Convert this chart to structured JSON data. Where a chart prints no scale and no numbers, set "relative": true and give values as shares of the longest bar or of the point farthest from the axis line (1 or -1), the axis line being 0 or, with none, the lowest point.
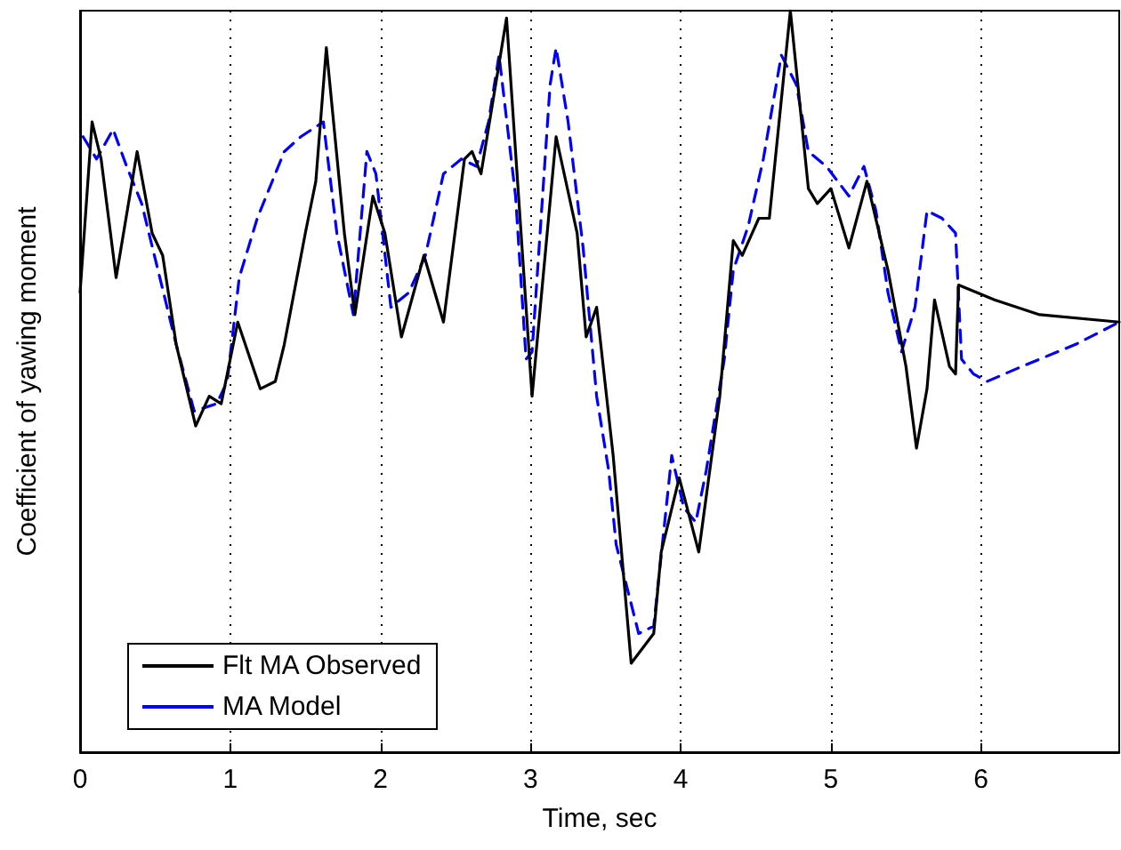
{
  "chart_data": {
    "type": "line",
    "xlabel": "Time, sec",
    "ylabel": "Coefficient of yawing moment",
    "relative": true,
    "xlim": [
      0,
      6.92
    ],
    "xticks": [
      0,
      1,
      2,
      3,
      4,
      5,
      6
    ],
    "grid": "x",
    "legend": "bottom left",
    "marker": "none",
    "series": [
      {
        "name": "Flt MA Observed",
        "color": "#000000",
        "line_style": "solid",
        "x": [
          0,
          0.08,
          0.14,
          0.24,
          0.38,
          0.48,
          0.55,
          0.64,
          0.77,
          0.86,
          0.94,
          1.05,
          1.2,
          1.3,
          1.36,
          1.5,
          1.57,
          1.64,
          1.76,
          1.83,
          1.95,
          2.03,
          2.14,
          2.29,
          2.42,
          2.56,
          2.61,
          2.67,
          2.84,
          3.01,
          3.17,
          3.31,
          3.37,
          3.44,
          3.55,
          3.67,
          3.82,
          3.87,
          3.99,
          4.12,
          4.26,
          4.35,
          4.41,
          4.52,
          4.59,
          4.73,
          4.85,
          4.91,
          5.0,
          5.12,
          5.24,
          5.38,
          5.5,
          5.57,
          5.64,
          5.69,
          5.79,
          5.83,
          5.85,
          6.09,
          6.39,
          6.92
        ],
        "values": [
          0.62,
          0.85,
          0.8,
          0.64,
          0.81,
          0.7,
          0.67,
          0.55,
          0.44,
          0.48,
          0.47,
          0.58,
          0.49,
          0.5,
          0.55,
          0.7,
          0.77,
          0.95,
          0.7,
          0.59,
          0.75,
          0.7,
          0.56,
          0.67,
          0.58,
          0.8,
          0.81,
          0.78,
          0.99,
          0.48,
          0.83,
          0.7,
          0.56,
          0.6,
          0.4,
          0.12,
          0.16,
          0.27,
          0.37,
          0.27,
          0.48,
          0.69,
          0.67,
          0.72,
          0.72,
          1.0,
          0.76,
          0.74,
          0.76,
          0.68,
          0.77,
          0.65,
          0.52,
          0.41,
          0.49,
          0.61,
          0.52,
          0.51,
          0.63,
          0.61,
          0.59,
          0.58
        ]
      },
      {
        "name": "MA Model",
        "color": "#0000ff",
        "line_style": "dashed",
        "x": [
          0.02,
          0.11,
          0.22,
          0.31,
          0.41,
          0.64,
          0.76,
          0.91,
          0.98,
          1.06,
          1.18,
          1.36,
          1.47,
          1.62,
          1.71,
          1.82,
          1.91,
          1.97,
          2.07,
          2.19,
          2.3,
          2.42,
          2.54,
          2.64,
          2.72,
          2.79,
          2.9,
          2.97,
          3.01,
          3.13,
          3.17,
          3.25,
          3.35,
          3.44,
          3.52,
          3.57,
          3.72,
          3.82,
          3.94,
          4.02,
          4.1,
          4.17,
          4.29,
          4.35,
          4.45,
          4.55,
          4.67,
          4.77,
          4.85,
          4.97,
          5.12,
          5.22,
          5.3,
          5.38,
          5.47,
          5.56,
          5.64,
          5.74,
          5.83,
          5.87,
          5.95,
          6.04,
          6.27,
          6.63,
          6.92
        ],
        "values": [
          0.83,
          0.8,
          0.84,
          0.79,
          0.74,
          0.55,
          0.46,
          0.47,
          0.5,
          0.64,
          0.72,
          0.81,
          0.83,
          0.85,
          0.7,
          0.59,
          0.81,
          0.78,
          0.6,
          0.62,
          0.67,
          0.78,
          0.8,
          0.79,
          0.85,
          0.94,
          0.75,
          0.53,
          0.54,
          0.9,
          0.95,
          0.85,
          0.68,
          0.48,
          0.38,
          0.28,
          0.16,
          0.17,
          0.4,
          0.33,
          0.31,
          0.38,
          0.53,
          0.65,
          0.71,
          0.8,
          0.94,
          0.9,
          0.81,
          0.79,
          0.75,
          0.79,
          0.73,
          0.62,
          0.54,
          0.6,
          0.73,
          0.72,
          0.7,
          0.53,
          0.51,
          0.5,
          0.52,
          0.55,
          0.58
        ]
      }
    ]
  }
}
